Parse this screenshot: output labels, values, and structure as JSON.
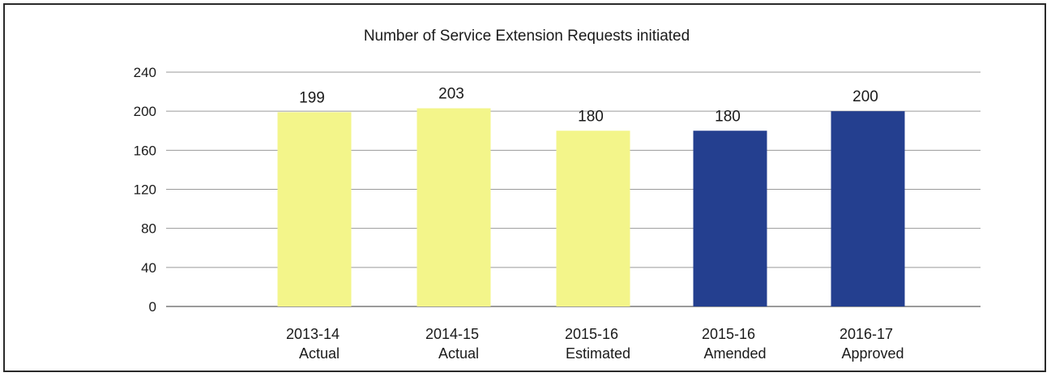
{
  "chart_data": {
    "type": "bar",
    "title": "Number of Service Extension Requests initiated",
    "xlabel": "",
    "ylabel": "",
    "ylim": [
      0,
      240
    ],
    "yticks": [
      0,
      40,
      80,
      120,
      160,
      200,
      240
    ],
    "grid": true,
    "categories": [
      {
        "line1": "2013-14",
        "line2": "Actual"
      },
      {
        "line1": "2014-15",
        "line2": "Actual"
      },
      {
        "line1": "2015-16",
        "line2": "Estimated"
      },
      {
        "line1": "2015-16",
        "line2": "Amended"
      },
      {
        "line1": "2016-17",
        "line2": "Approved"
      }
    ],
    "values": [
      199,
      203,
      180,
      180,
      200
    ],
    "value_labels": [
      "199",
      "203",
      "180",
      "180",
      "200"
    ],
    "colors": [
      "#f3f58a",
      "#f3f58a",
      "#f3f58a",
      "#243f8f",
      "#243f8f"
    ],
    "grid_color": "#9a9a9a",
    "axis_color": "#7a7a7a"
  }
}
